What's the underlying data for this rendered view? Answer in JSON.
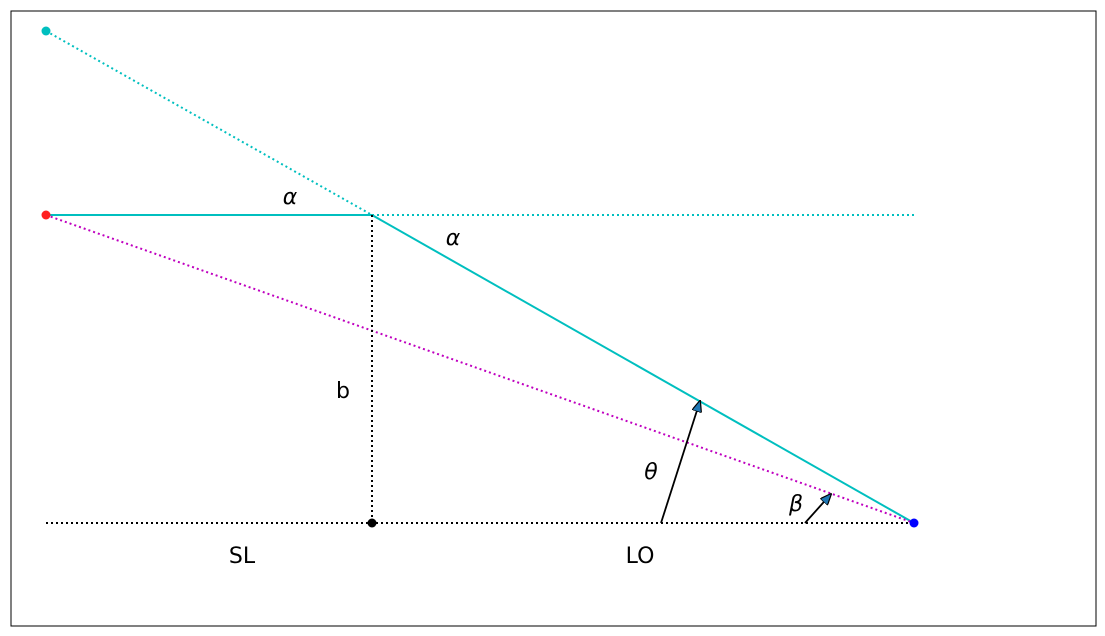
{
  "labels": {
    "alpha_upper": "α",
    "alpha_lower": "α",
    "b": "b",
    "theta": "θ",
    "beta": "β",
    "sl": "SL",
    "lo": "LO"
  }
}
